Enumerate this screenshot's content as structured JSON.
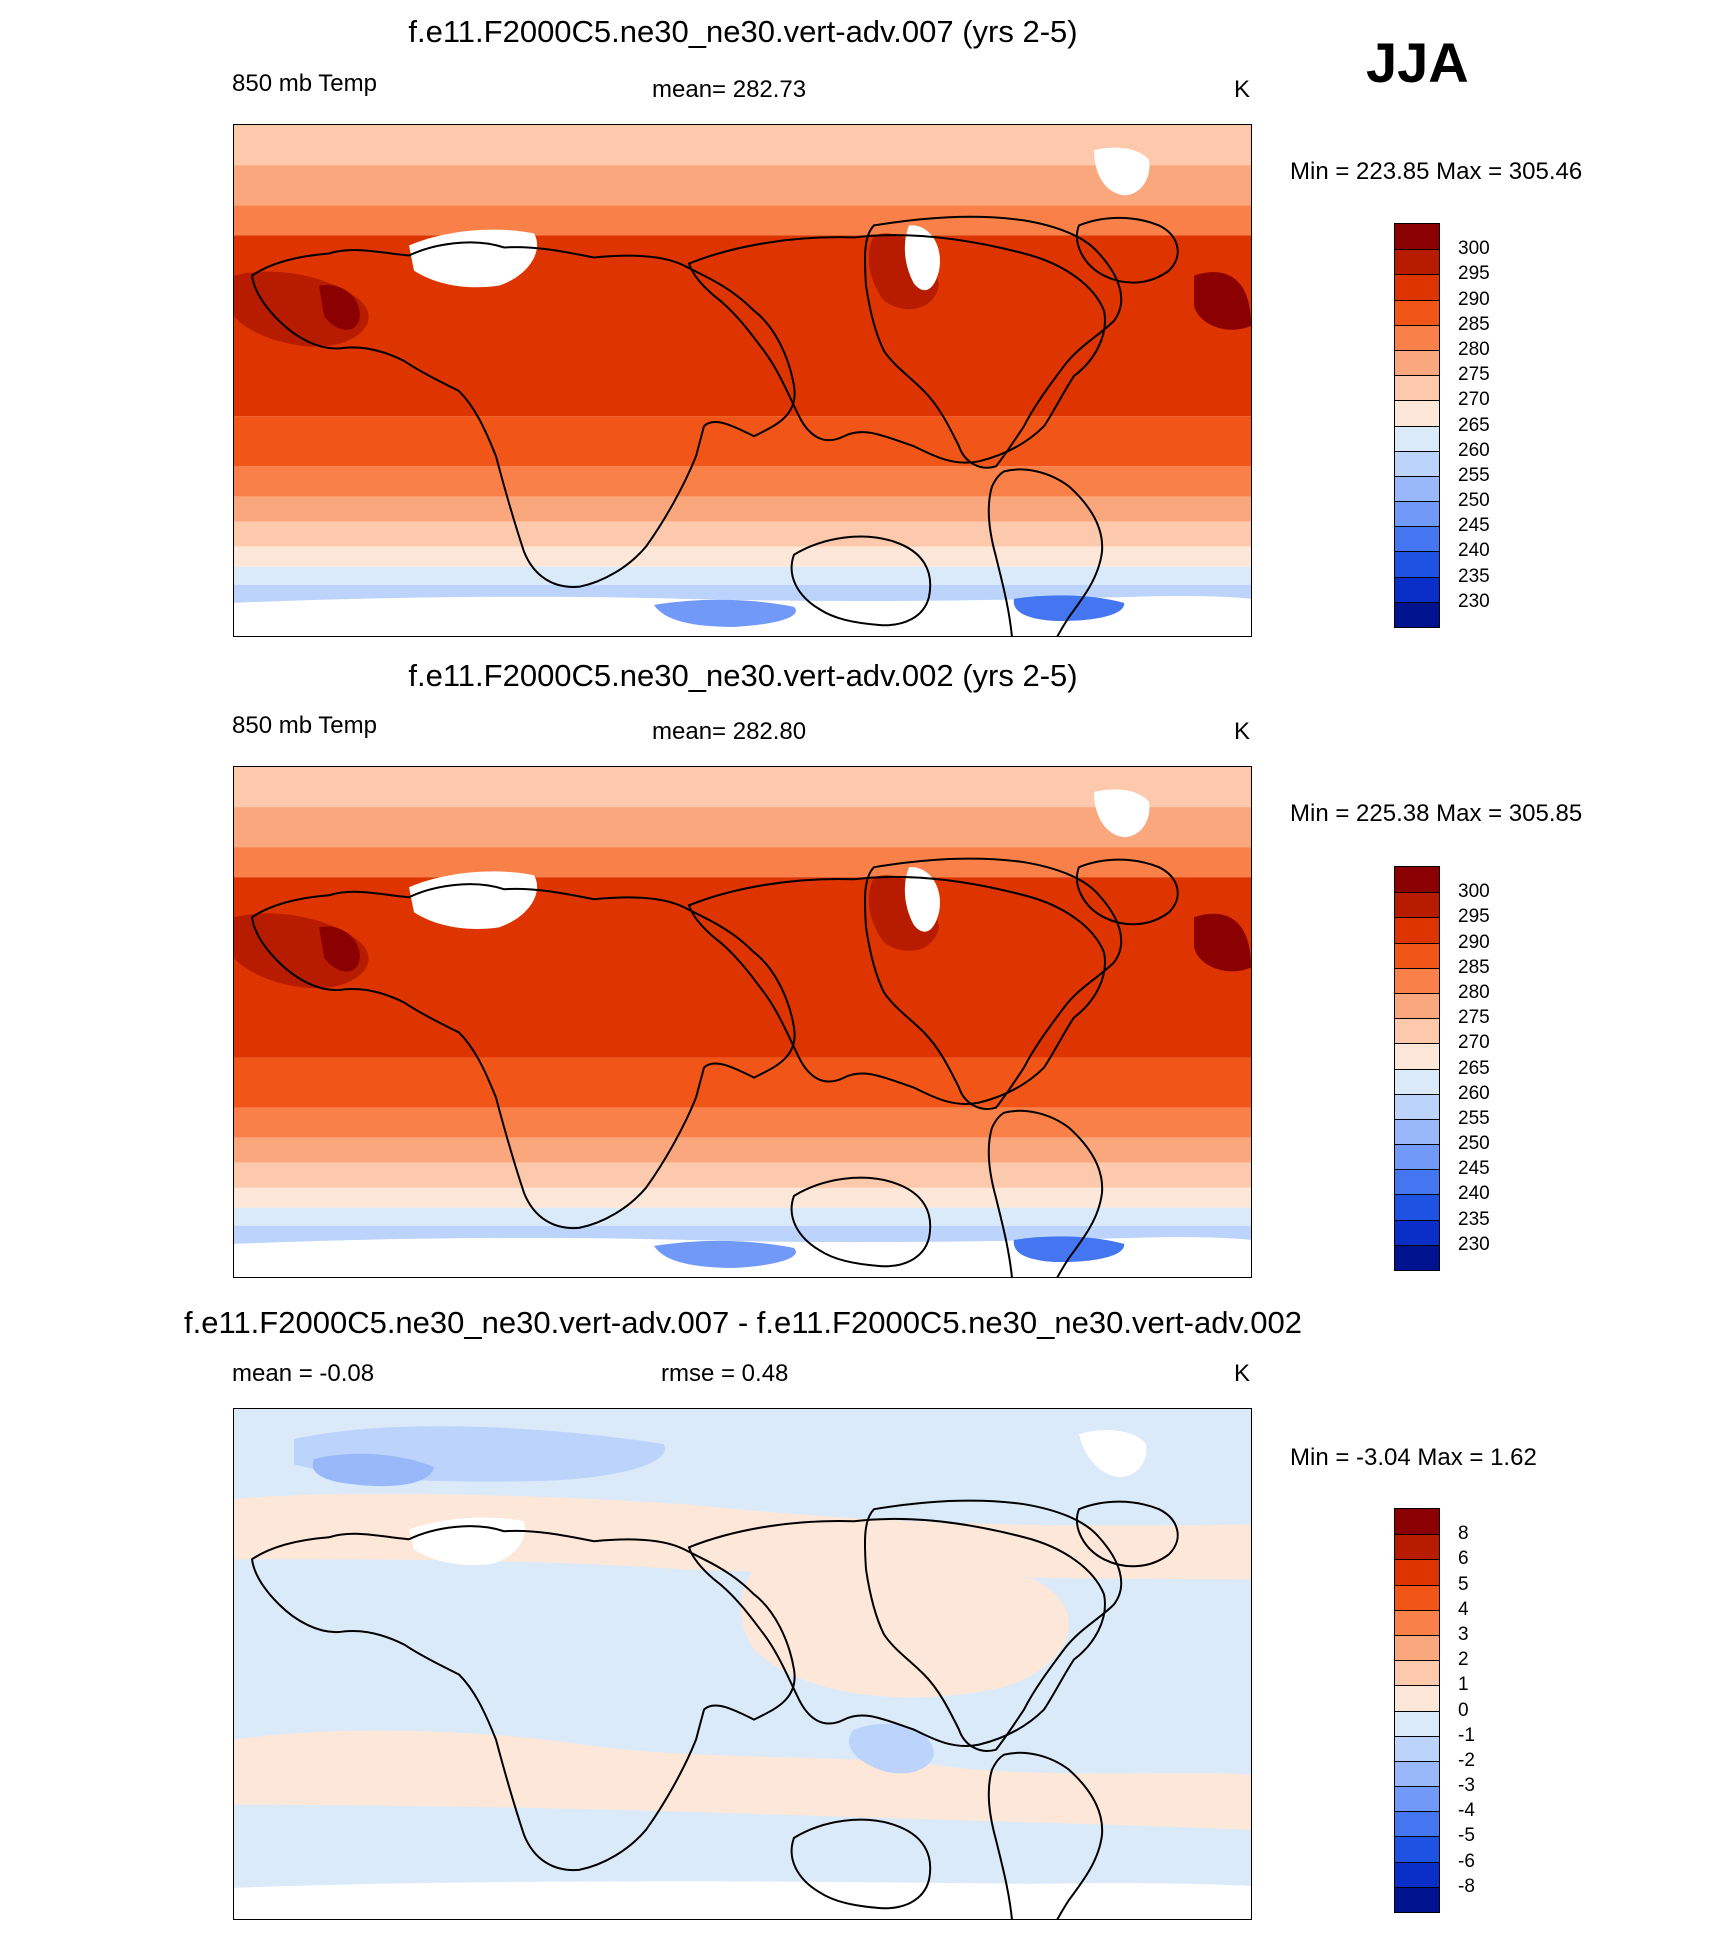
{
  "season": "JJA",
  "palette_levels": [
    "#8b0000",
    "#b81c00",
    "#dd3400",
    "#f25518",
    "#f98048",
    "#fba77e",
    "#fdc9ac",
    "#fde7d8",
    "#dbeaf9",
    "#bcd3fb",
    "#98b8fa",
    "#7099f8",
    "#4476f1",
    "#1e52e2",
    "#0a2fc8",
    "#00138f"
  ],
  "land_outline_color": "#000000",
  "missing_color": "#ffffff",
  "panels": [
    {
      "title": "f.e11.F2000C5.ne30_ne30.vert-adv.007 (yrs 2-5)",
      "left_label": "850 mb Temp",
      "center_label": "mean= 282.73",
      "units": "K",
      "minmax": "Min = 223.85 Max = 305.46",
      "colorbar_labels": [
        "300",
        "295",
        "290",
        "285",
        "280",
        "275",
        "270",
        "265",
        "260",
        "255",
        "250",
        "245",
        "240",
        "235",
        "230"
      ]
    },
    {
      "title": "f.e11.F2000C5.ne30_ne30.vert-adv.002 (yrs 2-5)",
      "left_label": "850 mb Temp",
      "center_label": "mean= 282.80",
      "units": "K",
      "minmax": "Min = 225.38 Max = 305.85",
      "colorbar_labels": [
        "300",
        "295",
        "290",
        "285",
        "280",
        "275",
        "270",
        "265",
        "260",
        "255",
        "250",
        "245",
        "240",
        "235",
        "230"
      ]
    },
    {
      "title": "f.e11.F2000C5.ne30_ne30.vert-adv.007 - f.e11.F2000C5.ne30_ne30.vert-adv.002",
      "left_label": "mean =  -0.08",
      "center_label": "rmse =   0.48",
      "units": "K",
      "minmax": "Min =  -3.04 Max =   1.62",
      "colorbar_labels": [
        "8",
        "6",
        "5",
        "4",
        "3",
        "2",
        "1",
        "0",
        "-1",
        "-2",
        "-3",
        "-4",
        "-5",
        "-6",
        "-8"
      ]
    }
  ]
}
